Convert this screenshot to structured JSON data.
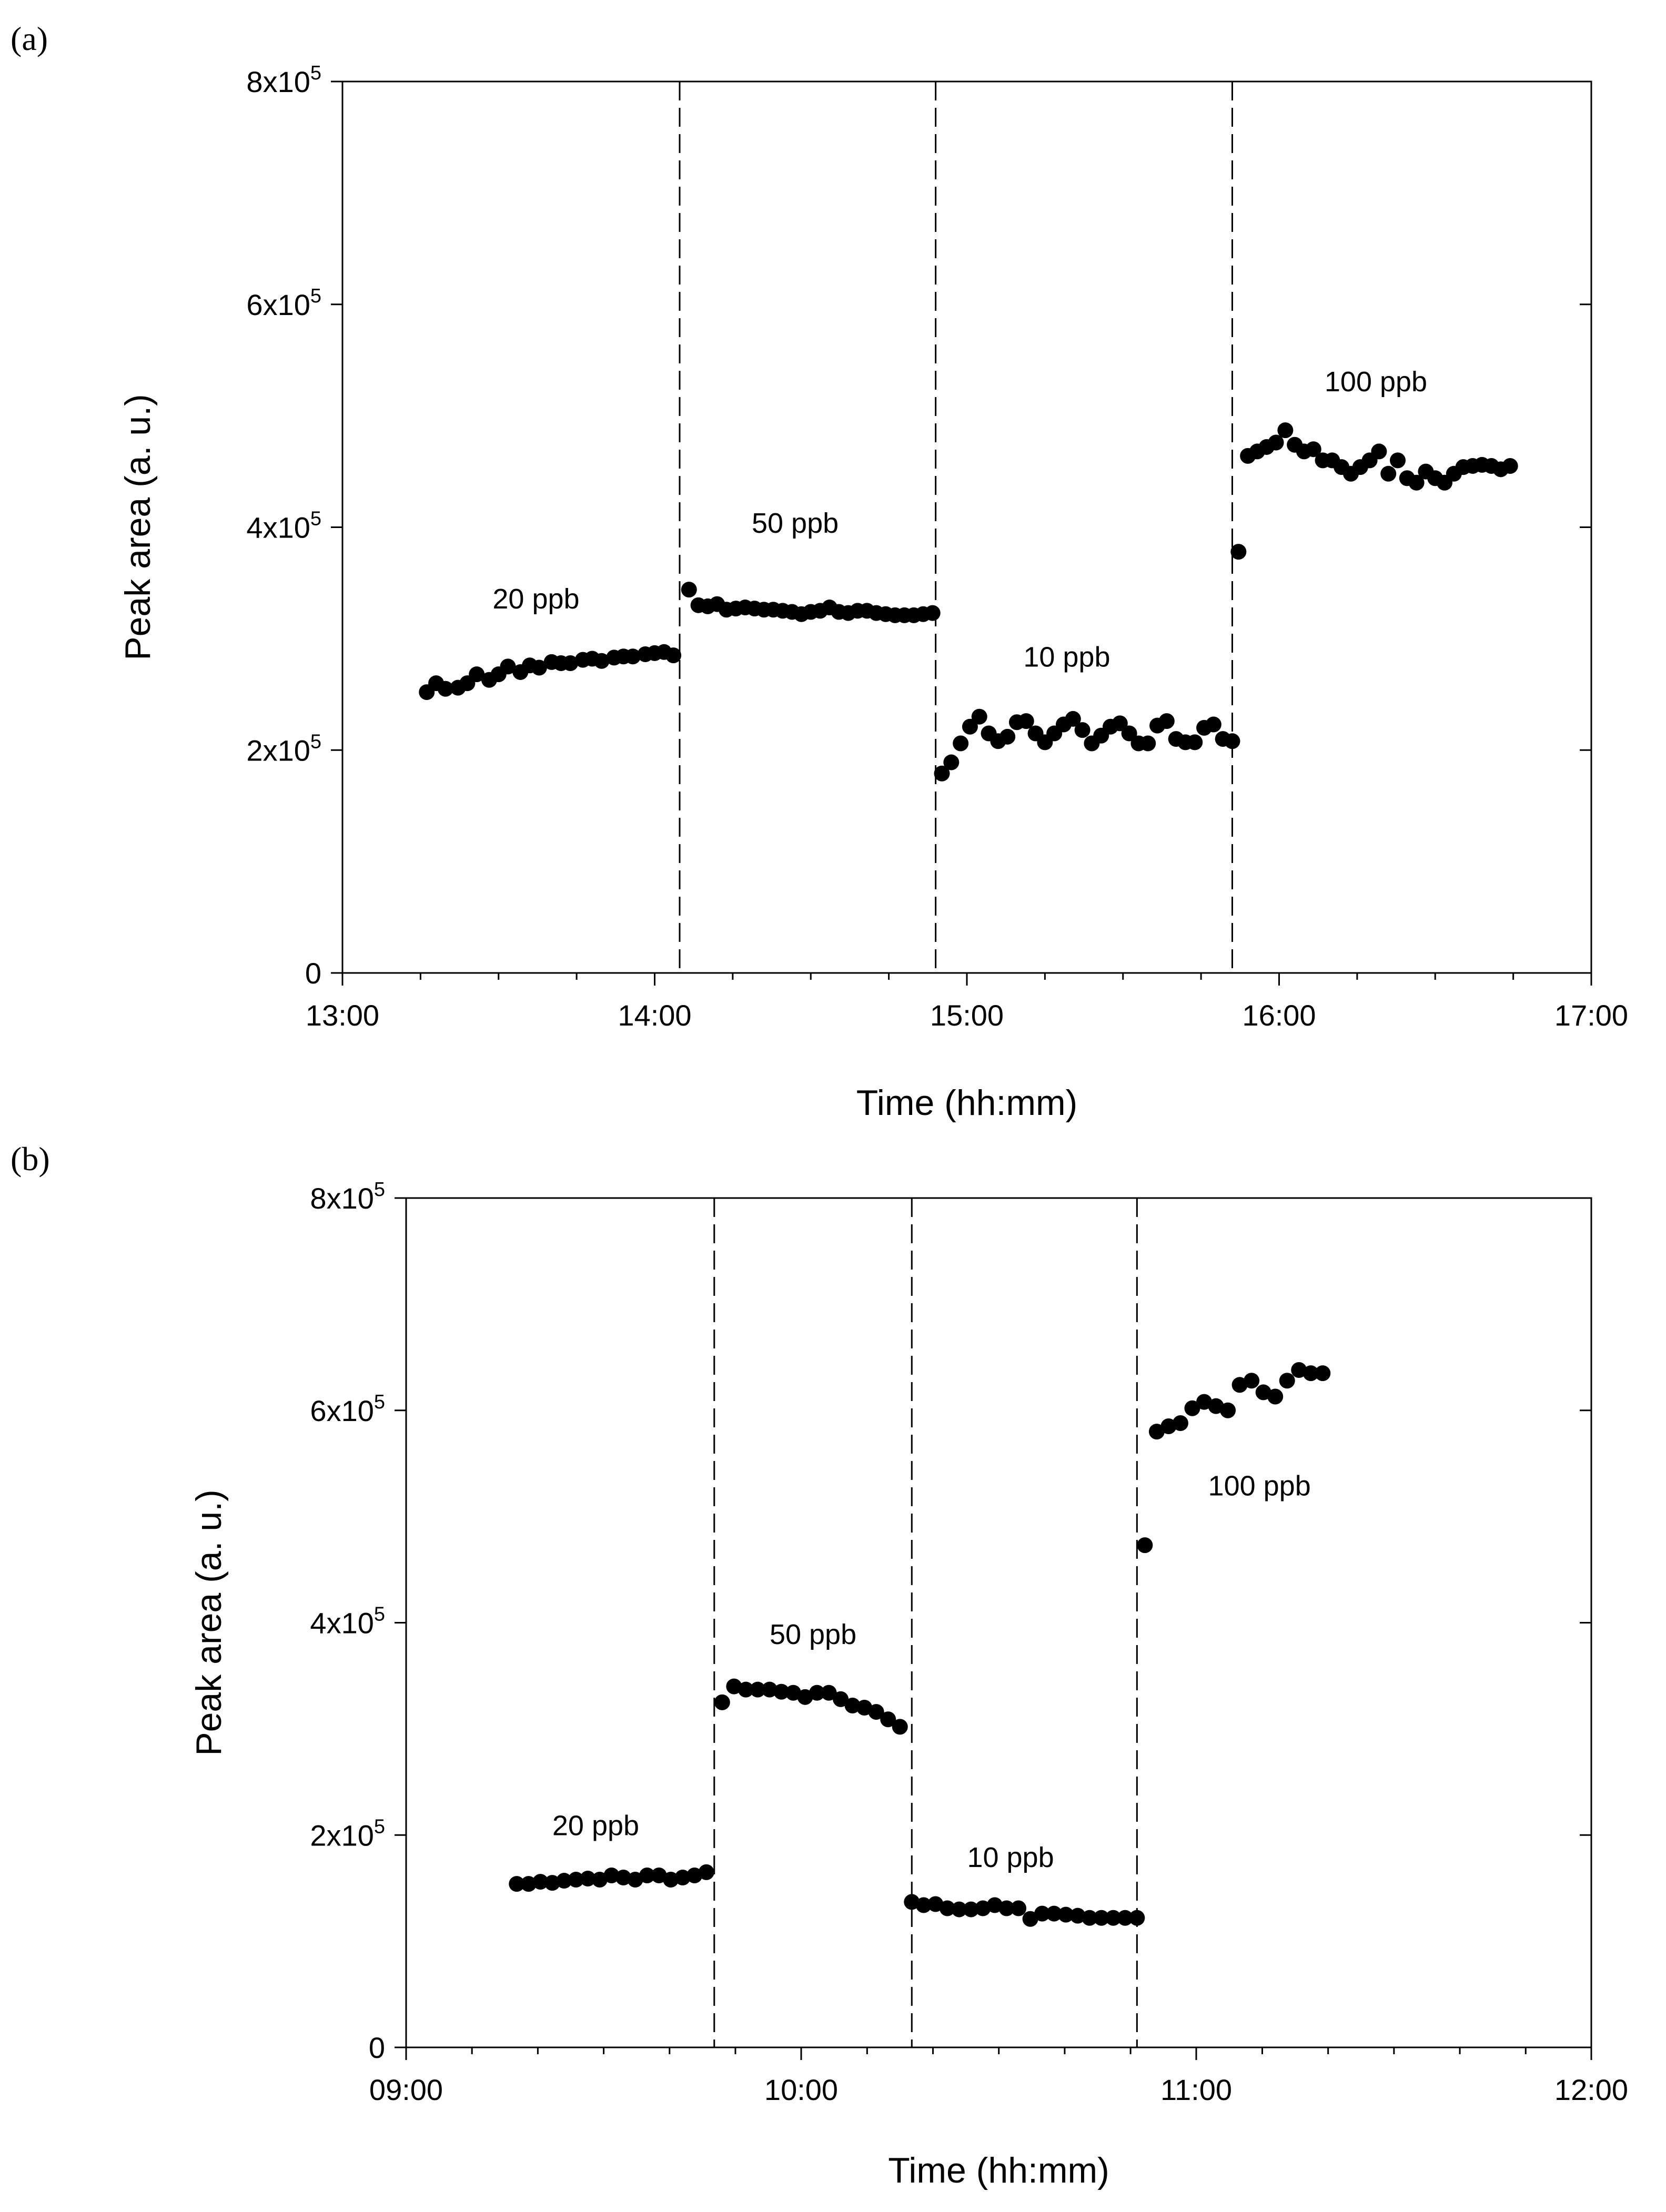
{
  "chart_data": [
    {
      "type": "scatter",
      "panel_label": "(a)",
      "xlabel": "Time (hh:mm)",
      "ylabel": "Peak area (a. u.)",
      "x_unit": "hours",
      "xlim": [
        13,
        17
      ],
      "ylim": [
        0,
        800000
      ],
      "x_ticks": [
        {
          "value": 13,
          "label": "13:00"
        },
        {
          "value": 14,
          "label": "14:00"
        },
        {
          "value": 15,
          "label": "15:00"
        },
        {
          "value": 16,
          "label": "16:00"
        },
        {
          "value": 17,
          "label": "17:00"
        }
      ],
      "x_minor_step": 0.25,
      "y_ticks": [
        {
          "value": 0,
          "base": "0",
          "exp": ""
        },
        {
          "value": 200000,
          "base": "2x10",
          "exp": "5"
        },
        {
          "value": 400000,
          "base": "4x10",
          "exp": "5"
        },
        {
          "value": 600000,
          "base": "6x10",
          "exp": "5"
        },
        {
          "value": 800000,
          "base": "8x10",
          "exp": "5"
        }
      ],
      "dividers": [
        14.08,
        14.9,
        15.85
      ],
      "annotations": [
        {
          "text": "20 ppb",
          "x": 13.62,
          "y": 327000
        },
        {
          "text": "50 ppb",
          "x": 14.45,
          "y": 395000
        },
        {
          "text": "10 ppb",
          "x": 15.32,
          "y": 275000
        },
        {
          "text": "100 ppb",
          "x": 16.31,
          "y": 522000
        }
      ],
      "series": [
        {
          "name": "20 ppb",
          "x": [
            13.27,
            13.3,
            13.33,
            13.37,
            13.4,
            13.43,
            13.47,
            13.5,
            13.53,
            13.57,
            13.6,
            13.63,
            13.67,
            13.7,
            13.73,
            13.77,
            13.8,
            13.83,
            13.87,
            13.9,
            13.93,
            13.97,
            14.0,
            14.03,
            14.06
          ],
          "y": [
            252000,
            260000,
            255000,
            256000,
            260000,
            268000,
            263000,
            268000,
            275000,
            270000,
            276000,
            274000,
            279000,
            278000,
            278000,
            281000,
            282000,
            280000,
            283000,
            284000,
            284000,
            286000,
            287000,
            288000,
            285000
          ]
        },
        {
          "name": "50 ppb",
          "x": [
            14.11,
            14.14,
            14.17,
            14.2,
            14.23,
            14.26,
            14.29,
            14.32,
            14.35,
            14.38,
            14.41,
            14.44,
            14.47,
            14.5,
            14.53,
            14.56,
            14.59,
            14.62,
            14.65,
            14.68,
            14.71,
            14.74,
            14.77,
            14.8,
            14.83,
            14.86,
            14.89
          ],
          "y": [
            344000,
            330000,
            329000,
            331000,
            326000,
            327000,
            328000,
            327000,
            326000,
            326000,
            325000,
            324000,
            322000,
            324000,
            325000,
            328000,
            324000,
            323000,
            325000,
            325000,
            323000,
            322000,
            321000,
            321000,
            321000,
            322000,
            323000
          ],
          "_note": "y in Peak area units"
        },
        {
          "name": "10 ppb",
          "x": [
            14.92,
            14.95,
            14.98,
            15.01,
            15.04,
            15.07,
            15.1,
            15.13,
            15.16,
            15.19,
            15.22,
            15.25,
            15.28,
            15.31,
            15.34,
            15.37,
            15.4,
            15.43,
            15.46,
            15.49,
            15.52,
            15.55,
            15.58,
            15.61,
            15.64,
            15.67,
            15.7,
            15.73,
            15.76,
            15.79,
            15.82,
            15.85
          ],
          "y": [
            179000,
            189000,
            206000,
            221000,
            230000,
            215000,
            208000,
            212000,
            225000,
            226000,
            215000,
            207000,
            215000,
            223000,
            228000,
            218000,
            206000,
            213000,
            221000,
            224000,
            215000,
            206000,
            206000,
            222000,
            226000,
            210000,
            207000,
            207000,
            220000,
            223000,
            210000,
            208000
          ]
        },
        {
          "name": "100 ppb",
          "x": [
            15.87,
            15.9,
            15.93,
            15.96,
            15.99,
            16.02,
            16.05,
            16.08,
            16.11,
            16.14,
            16.17,
            16.2,
            16.23,
            16.26,
            16.29,
            16.32,
            16.35,
            16.38,
            16.41,
            16.44,
            16.47,
            16.5,
            16.53,
            16.56,
            16.59,
            16.62,
            16.65,
            16.68,
            16.71,
            16.74
          ],
          "y": [
            378000,
            464000,
            468000,
            472000,
            476000,
            487000,
            474000,
            468000,
            470000,
            460000,
            460000,
            454000,
            448000,
            454000,
            460000,
            468000,
            448000,
            460000,
            444000,
            440000,
            450000,
            444000,
            440000,
            448000,
            454000,
            455000,
            456000,
            455000,
            452000,
            455000
          ]
        }
      ]
    },
    {
      "type": "scatter",
      "panel_label": "(b)",
      "xlabel": "Time (hh:mm)",
      "ylabel": "Peak area (a. u.)",
      "x_unit": "hours",
      "xlim": [
        9,
        12
      ],
      "ylim": [
        0,
        800000
      ],
      "x_ticks": [
        {
          "value": 9,
          "label": "09:00"
        },
        {
          "value": 10,
          "label": "10:00"
        },
        {
          "value": 11,
          "label": "11:00"
        },
        {
          "value": 12,
          "label": "12:00"
        }
      ],
      "x_minor_step": 0.1667,
      "y_ticks": [
        {
          "value": 0,
          "base": "0",
          "exp": ""
        },
        {
          "value": 200000,
          "base": "2x10",
          "exp": "5"
        },
        {
          "value": 400000,
          "base": "4x10",
          "exp": "5"
        },
        {
          "value": 600000,
          "base": "6x10",
          "exp": "5"
        },
        {
          "value": 800000,
          "base": "8x10",
          "exp": "5"
        }
      ],
      "dividers": [
        9.78,
        10.28,
        10.85
      ],
      "annotations": [
        {
          "text": "20 ppb",
          "x": 9.48,
          "y": 200000
        },
        {
          "text": "50 ppb",
          "x": 10.03,
          "y": 380000
        },
        {
          "text": "10 ppb",
          "x": 10.53,
          "y": 170000
        },
        {
          "text": "100 ppb",
          "x": 11.16,
          "y": 520000
        }
      ],
      "series": [
        {
          "name": "20 ppb",
          "x": [
            9.28,
            9.31,
            9.34,
            9.37,
            9.4,
            9.43,
            9.46,
            9.49,
            9.52,
            9.55,
            9.58,
            9.61,
            9.64,
            9.67,
            9.7,
            9.73,
            9.76
          ],
          "y": [
            154000,
            154000,
            156000,
            155000,
            157000,
            158000,
            159000,
            158000,
            162000,
            160000,
            158000,
            162000,
            162000,
            158000,
            160000,
            162000,
            165000
          ]
        },
        {
          "name": "50 ppb",
          "x": [
            9.8,
            9.83,
            9.86,
            9.89,
            9.92,
            9.95,
            9.98,
            10.01,
            10.04,
            10.07,
            10.1,
            10.13,
            10.16,
            10.19,
            10.22,
            10.25
          ],
          "y": [
            325000,
            340000,
            337000,
            337000,
            337000,
            335000,
            334000,
            330000,
            334000,
            334000,
            328000,
            322000,
            320000,
            316000,
            309000,
            302000
          ]
        },
        {
          "name": "10 ppb",
          "x": [
            10.28,
            10.31,
            10.34,
            10.37,
            10.4,
            10.43,
            10.46,
            10.49,
            10.52,
            10.55,
            10.58,
            10.61,
            10.64,
            10.67,
            10.7,
            10.73,
            10.76,
            10.79,
            10.82,
            10.85
          ],
          "y": [
            137000,
            134000,
            135000,
            131000,
            130000,
            130000,
            131000,
            134000,
            131000,
            131000,
            121000,
            126000,
            126000,
            125000,
            124000,
            122000,
            122000,
            122000,
            122000,
            122000
          ]
        },
        {
          "name": "100 ppb",
          "x": [
            10.87,
            10.9,
            10.93,
            10.96,
            10.99,
            11.02,
            11.05,
            11.08,
            11.11,
            11.14,
            11.17,
            11.2,
            11.23,
            11.26,
            11.29,
            11.32
          ],
          "y": [
            473000,
            580000,
            585000,
            588000,
            602000,
            608000,
            604000,
            600000,
            624000,
            628000,
            617000,
            613000,
            628000,
            638000,
            635000,
            635000
          ]
        }
      ]
    }
  ]
}
